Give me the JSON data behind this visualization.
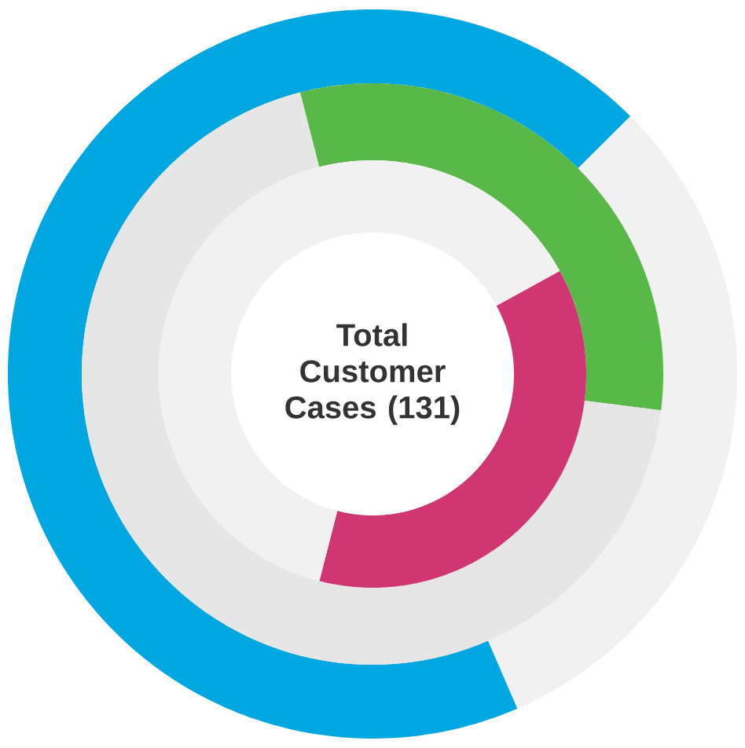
{
  "chart_data": [
    {
      "type": "donut",
      "categories": [
        null,
        null,
        null
      ],
      "values": [
        12.5,
        31,
        56.5
      ],
      "colors": [
        "#00a7e0",
        "#f1f1f1",
        "#00a7e0"
      ]
    },
    {
      "type": "donut",
      "categories": [
        null,
        null,
        null
      ],
      "values": [
        27,
        69,
        4
      ],
      "colors": [
        "#58b848",
        "#e6e6e6",
        "#58b848"
      ]
    },
    {
      "type": "donut",
      "title": "Total Customer Cases (131)",
      "categories": [
        null,
        null,
        null
      ],
      "values": [
        17,
        37,
        46
      ],
      "colors": [
        "#f1f1f1",
        "#cf3672",
        "#f1f1f1"
      ]
    }
  ]
}
